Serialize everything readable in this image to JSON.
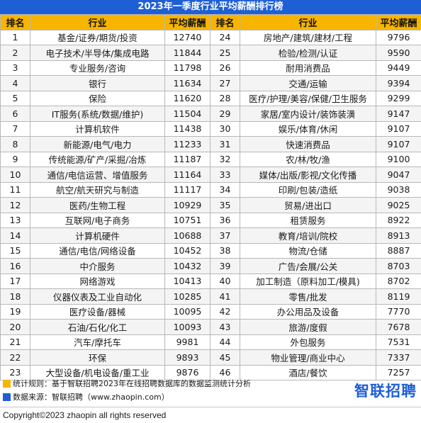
{
  "title": "2023年一季度行业平均薪酬排行榜",
  "headers": {
    "rank": "排名",
    "industry": "行业",
    "salary": "平均薪酬"
  },
  "left_rows": [
    {
      "rank": "1",
      "industry": "基金/证券/期货/投资",
      "salary": "12740"
    },
    {
      "rank": "2",
      "industry": "电子技术/半导体/集成电路",
      "salary": "11844"
    },
    {
      "rank": "3",
      "industry": "专业服务/咨询",
      "salary": "11798"
    },
    {
      "rank": "4",
      "industry": "银行",
      "salary": "11634"
    },
    {
      "rank": "5",
      "industry": "保险",
      "salary": "11620"
    },
    {
      "rank": "6",
      "industry": "IT服务(系统/数据/维护)",
      "salary": "11504"
    },
    {
      "rank": "7",
      "industry": "计算机软件",
      "salary": "11438"
    },
    {
      "rank": "8",
      "industry": "新能源/电气/电力",
      "salary": "11233"
    },
    {
      "rank": "9",
      "industry": "传统能源/矿产/采掘/冶炼",
      "salary": "11187"
    },
    {
      "rank": "10",
      "industry": "通信/电信运营、增值服务",
      "salary": "11164"
    },
    {
      "rank": "11",
      "industry": "航空/航天研究与制造",
      "salary": "11117"
    },
    {
      "rank": "12",
      "industry": "医药/生物工程",
      "salary": "10929"
    },
    {
      "rank": "13",
      "industry": "互联网/电子商务",
      "salary": "10751"
    },
    {
      "rank": "14",
      "industry": "计算机硬件",
      "salary": "10688"
    },
    {
      "rank": "15",
      "industry": "通信/电信/网络设备",
      "salary": "10452"
    },
    {
      "rank": "16",
      "industry": "中介服务",
      "salary": "10432"
    },
    {
      "rank": "17",
      "industry": "网络游戏",
      "salary": "10413"
    },
    {
      "rank": "18",
      "industry": "仪器仪表及工业自动化",
      "salary": "10285"
    },
    {
      "rank": "19",
      "industry": "医疗设备/器械",
      "salary": "10095"
    },
    {
      "rank": "20",
      "industry": "石油/石化/化工",
      "salary": "10093"
    },
    {
      "rank": "21",
      "industry": "汽车/摩托车",
      "salary": "9981"
    },
    {
      "rank": "22",
      "industry": "环保",
      "salary": "9893"
    },
    {
      "rank": "23",
      "industry": "大型设备/机电设备/重工业",
      "salary": "9876"
    }
  ],
  "right_rows": [
    {
      "rank": "24",
      "industry": "房地产/建筑/建材/工程",
      "salary": "9796"
    },
    {
      "rank": "25",
      "industry": "检验/检测/认证",
      "salary": "9590"
    },
    {
      "rank": "26",
      "industry": "耐用消费品",
      "salary": "9449"
    },
    {
      "rank": "27",
      "industry": "交通/运输",
      "salary": "9394"
    },
    {
      "rank": "28",
      "industry": "医疗/护理/美容/保健/卫生服务",
      "salary": "9299"
    },
    {
      "rank": "29",
      "industry": "家居/室内设计/装饰装潢",
      "salary": "9147"
    },
    {
      "rank": "30",
      "industry": "娱乐/体育/休闲",
      "salary": "9107"
    },
    {
      "rank": "31",
      "industry": "快速消费品",
      "salary": "9107"
    },
    {
      "rank": "32",
      "industry": "农/林/牧/渔",
      "salary": "9100"
    },
    {
      "rank": "33",
      "industry": "媒体/出版/影视/文化传播",
      "salary": "9047"
    },
    {
      "rank": "34",
      "industry": "印刷/包装/造纸",
      "salary": "9038"
    },
    {
      "rank": "35",
      "industry": "贸易/进出口",
      "salary": "9025"
    },
    {
      "rank": "36",
      "industry": "租赁服务",
      "salary": "8922"
    },
    {
      "rank": "37",
      "industry": "教育/培训/院校",
      "salary": "8913"
    },
    {
      "rank": "38",
      "industry": "物流/仓储",
      "salary": "8887"
    },
    {
      "rank": "39",
      "industry": "广告/会展/公关",
      "salary": "8703"
    },
    {
      "rank": "40",
      "industry": "加工制造（原料加工/模具)",
      "salary": "8702"
    },
    {
      "rank": "41",
      "industry": "零售/批发",
      "salary": "8119"
    },
    {
      "rank": "42",
      "industry": "办公用品及设备",
      "salary": "7770"
    },
    {
      "rank": "43",
      "industry": "旅游/度假",
      "salary": "7678"
    },
    {
      "rank": "44",
      "industry": "外包服务",
      "salary": "7531"
    },
    {
      "rank": "45",
      "industry": "物业管理/商业中心",
      "salary": "7337"
    },
    {
      "rank": "46",
      "industry": "酒店/餐饮",
      "salary": "7257"
    }
  ],
  "notes": {
    "rule": "统计规则：基于智联招聘2023年在线招聘数据库的数据监测统计分析",
    "source": "数据来源：智联招聘（www.zhaopin.com）"
  },
  "logo": "智联招聘",
  "copyright": "Copyright©2023 zhaopin all rights reserved",
  "colors": {
    "header_blue": "#1e5fd6",
    "header_yellow": "#f7b500"
  }
}
